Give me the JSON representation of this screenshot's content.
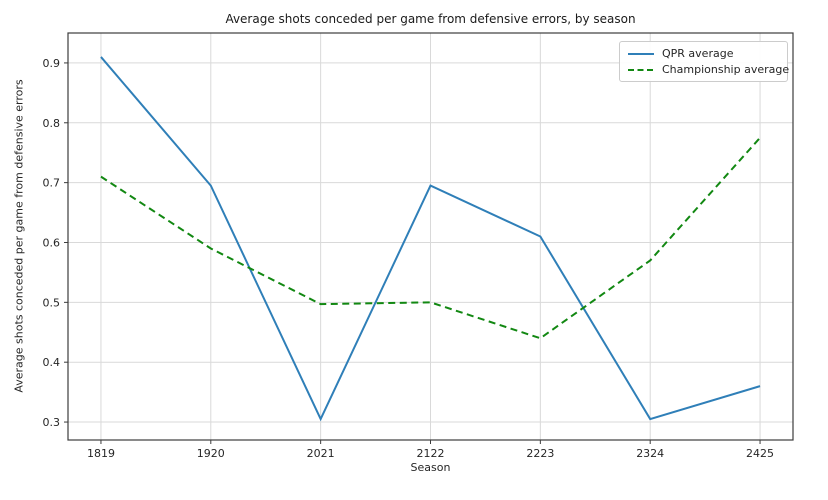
{
  "chart_data": {
    "type": "line",
    "title": "Average shots conceded per game from defensive errors, by season",
    "xlabel": "Season",
    "ylabel": "Average shots conceded per game from defensive errors",
    "categories": [
      "1819",
      "1920",
      "2021",
      "2122",
      "2223",
      "2324",
      "2425"
    ],
    "series": [
      {
        "name": "QPR average",
        "style": "solid",
        "color": "#2f7fb8",
        "values": [
          0.91,
          0.695,
          0.305,
          0.695,
          0.61,
          0.305,
          0.36
        ]
      },
      {
        "name": "Championship average",
        "style": "dashed",
        "color": "#128812",
        "values": [
          0.71,
          0.59,
          0.497,
          0.5,
          0.44,
          0.57,
          0.775
        ]
      }
    ],
    "yticks": [
      0.3,
      0.4,
      0.5,
      0.6,
      0.7,
      0.8,
      0.9
    ],
    "ylim": [
      0.27,
      0.95
    ],
    "xlim": [
      -0.3,
      6.3
    ],
    "grid": true,
    "legend_position": "upper right",
    "colors": {
      "grid": "#d9d9d9",
      "spine": "#3c3c3c",
      "tick_text": "#262626",
      "background": "#ffffff"
    }
  }
}
